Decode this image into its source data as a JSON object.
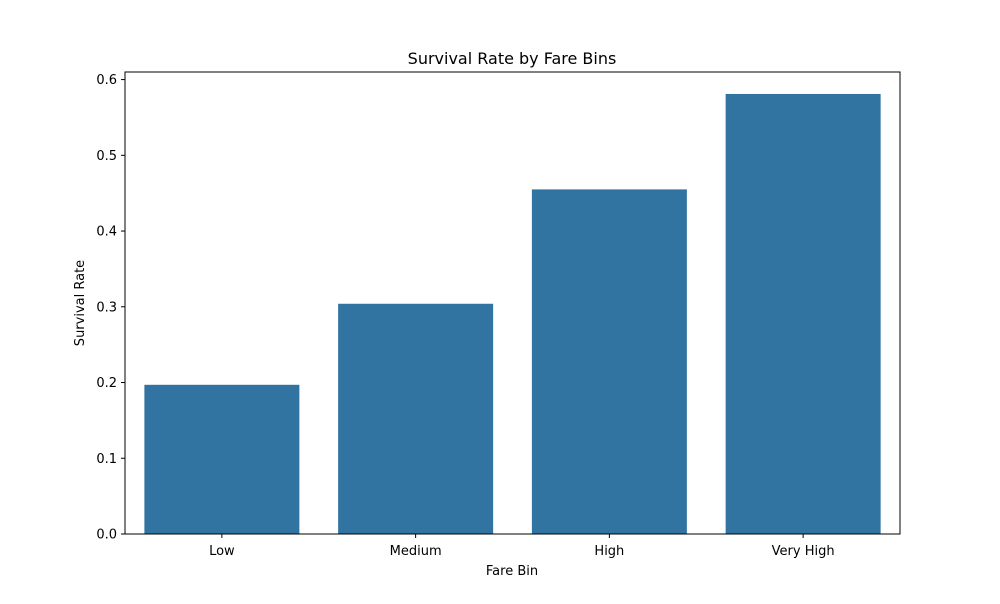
{
  "chart_data": {
    "type": "bar",
    "title": "Survival Rate by Fare Bins",
    "xlabel": "Fare Bin",
    "ylabel": "Survival Rate",
    "categories": [
      "Low",
      "Medium",
      "High",
      "Very High"
    ],
    "values": [
      0.197,
      0.304,
      0.455,
      0.581
    ],
    "ylim": [
      0,
      0.61
    ],
    "yticks": [
      0.0,
      0.1,
      0.2,
      0.3,
      0.4,
      0.5,
      0.6
    ],
    "ytick_labels": [
      "0.0",
      "0.1",
      "0.2",
      "0.3",
      "0.4",
      "0.5",
      "0.6"
    ],
    "grid": false,
    "legend": "none",
    "bar_color": "#3274a1"
  }
}
